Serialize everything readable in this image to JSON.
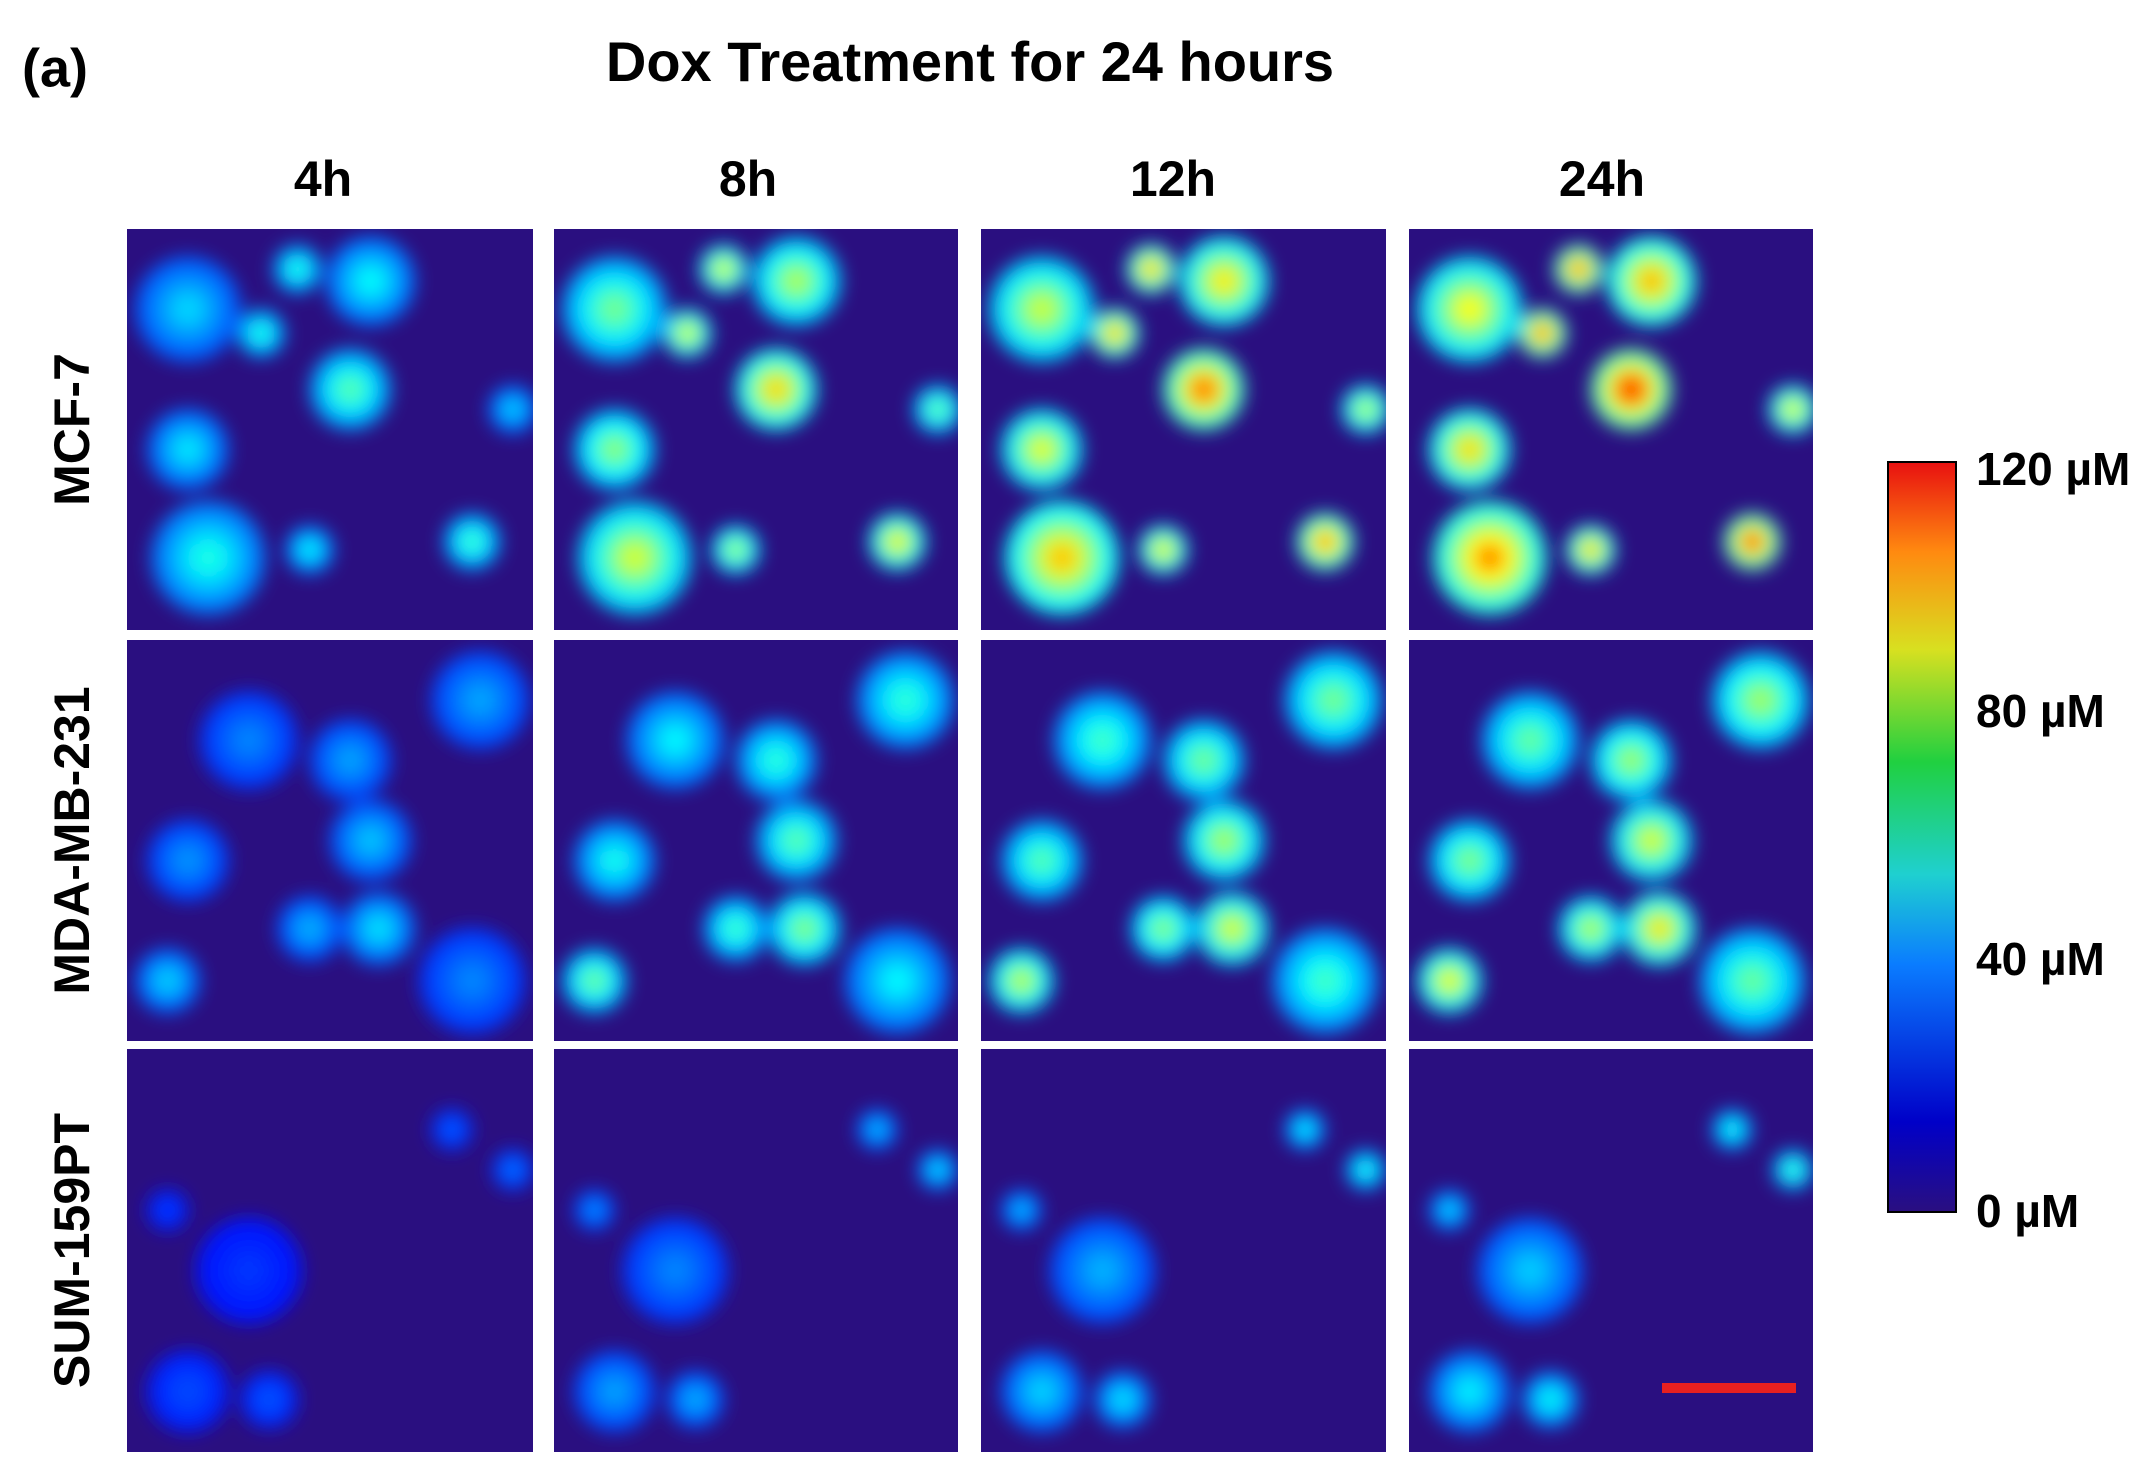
{
  "panel_label": "(a)",
  "title": "Dox Treatment for 24 hours",
  "columns": [
    "4h",
    "8h",
    "12h",
    "24h"
  ],
  "rows": [
    "MCF-7",
    "MDA-MB-231",
    "SUM-159PT"
  ],
  "colorbar": {
    "labels": [
      "120 µM",
      "80 µM",
      "40 µM",
      "0 µM"
    ]
  }
}
